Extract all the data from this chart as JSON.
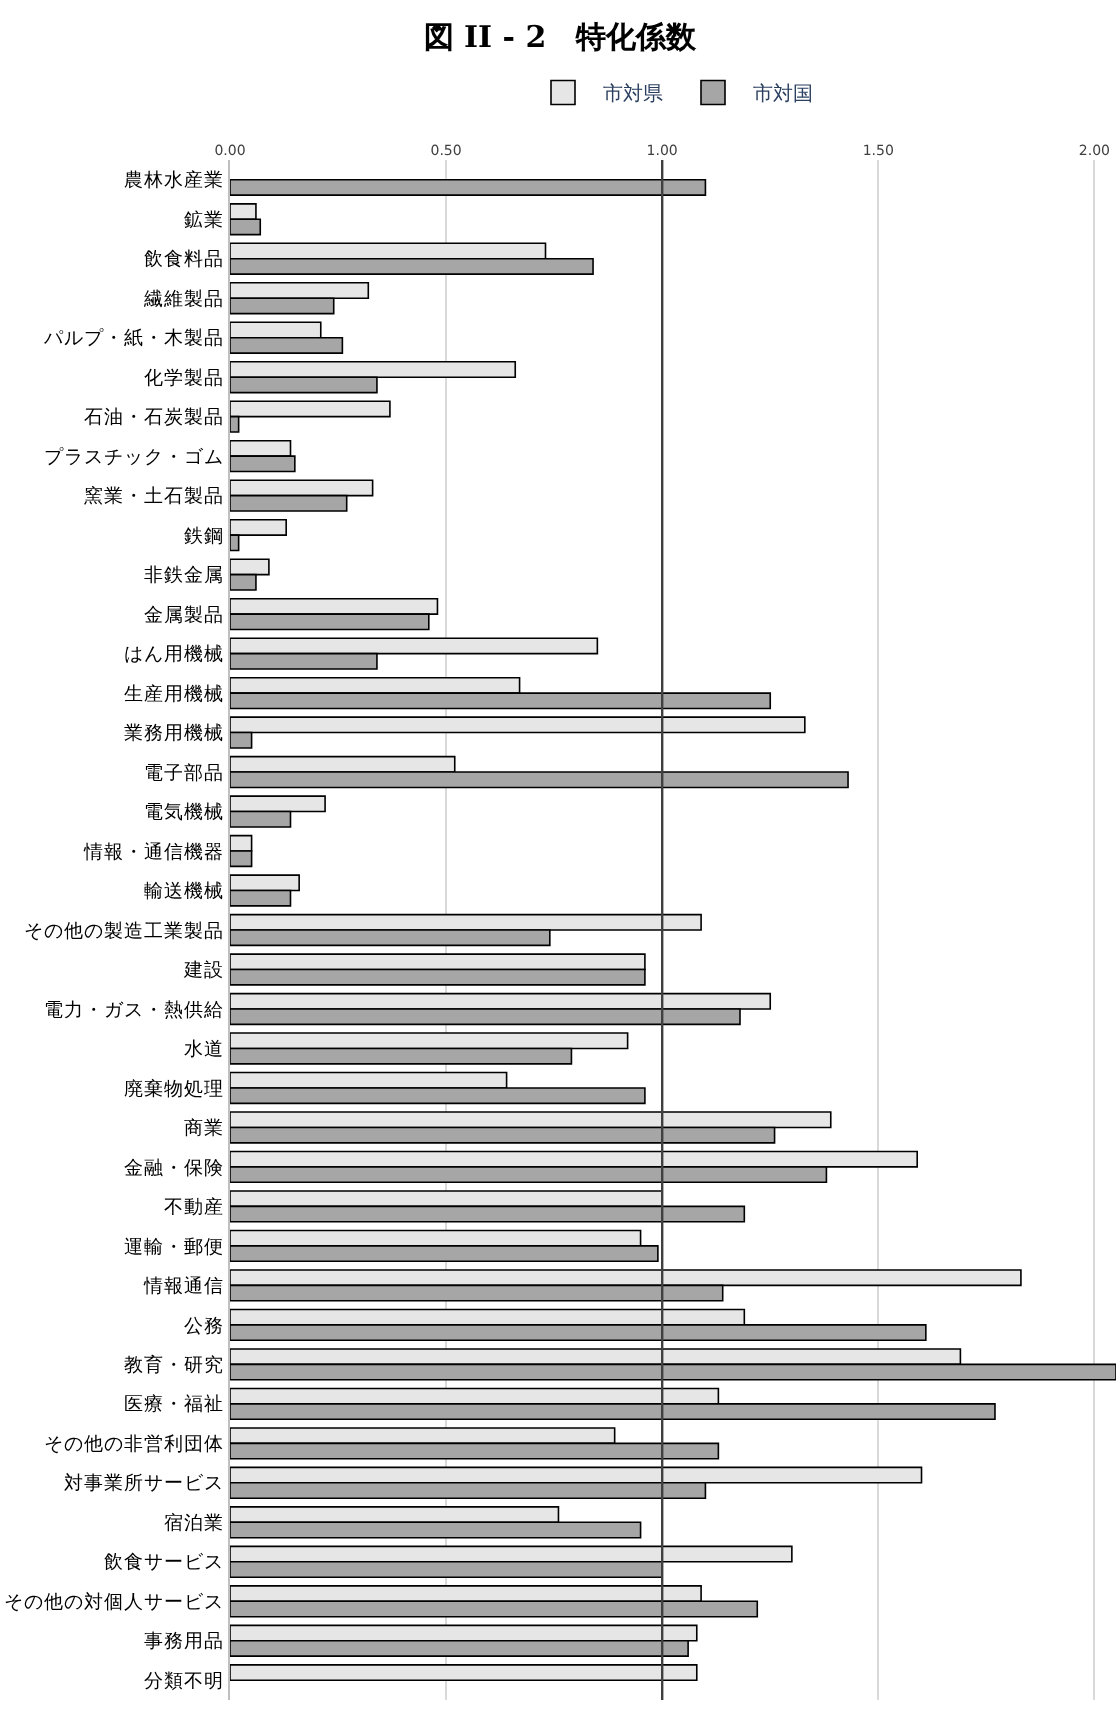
{
  "chart_data": {
    "type": "bar",
    "orientation": "horizontal",
    "title": "図 II - 2　特化係数",
    "categories": [
      "農林水産業",
      "鉱業",
      "飲食料品",
      "繊維製品",
      "パルプ・紙・木製品",
      "化学製品",
      "石油・石炭製品",
      "プラスチック・ゴム",
      "窯業・土石製品",
      "鉄鋼",
      "非鉄金属",
      "金属製品",
      "はん用機械",
      "生産用機械",
      "業務用機械",
      "電子部品",
      "電気機械",
      "情報・通信機器",
      "輸送機械",
      "その他の製造工業製品",
      "建設",
      "電力・ガス・熱供給",
      "水道",
      "廃棄物処理",
      "商業",
      "金融・保険",
      "不動産",
      "運輸・郵便",
      "情報通信",
      "公務",
      "教育・研究",
      "医療・福祉",
      "その他の非営利団体",
      "対事業所サービス",
      "宿泊業",
      "飲食サービス",
      "その他の対個人サービス",
      "事務用品",
      "分類不明"
    ],
    "series": [
      {
        "name": "市対県",
        "color": "#e6e6e6",
        "values": [
          null,
          0.06,
          0.73,
          0.32,
          0.21,
          0.66,
          0.37,
          0.14,
          0.33,
          0.13,
          0.09,
          0.48,
          0.85,
          0.67,
          1.33,
          0.52,
          0.22,
          0.05,
          0.16,
          1.09,
          0.96,
          1.25,
          0.92,
          0.64,
          1.39,
          1.59,
          1.0,
          0.95,
          1.83,
          1.19,
          1.69,
          1.13,
          0.89,
          1.6,
          0.76,
          1.3,
          1.09,
          1.08,
          1.08
        ]
      },
      {
        "name": "市対国",
        "color": "#a6a6a6",
        "values": [
          1.1,
          0.07,
          0.84,
          0.24,
          0.26,
          0.34,
          0.02,
          0.15,
          0.27,
          0.02,
          0.06,
          0.46,
          0.34,
          1.25,
          0.05,
          1.43,
          0.14,
          0.05,
          0.14,
          0.74,
          0.96,
          1.18,
          0.79,
          0.96,
          1.26,
          1.38,
          1.19,
          0.99,
          1.14,
          1.61,
          2.05,
          1.77,
          1.13,
          1.1,
          0.95,
          1.0,
          1.22,
          1.06,
          null
        ]
      }
    ],
    "xlim": [
      0,
      2.05
    ],
    "xticks": [
      {
        "value": 0,
        "label": "0.00"
      },
      {
        "value": 0.5,
        "label": "0.50"
      },
      {
        "value": 1,
        "label": "1.00"
      },
      {
        "value": 1.5,
        "label": "1.50"
      },
      {
        "value": 2,
        "label": "2.00"
      }
    ],
    "ref_lines": [
      {
        "axis": "x",
        "value": 1,
        "color": "#404040"
      }
    ],
    "grid": "x",
    "legend": "top"
  }
}
